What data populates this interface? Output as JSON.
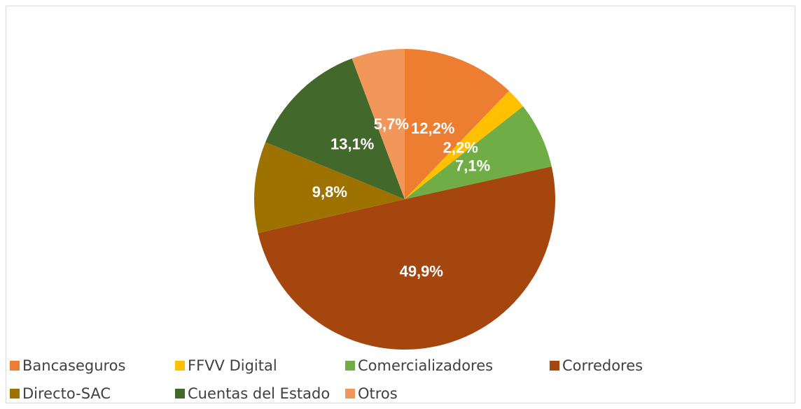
{
  "chart_data": {
    "type": "pie",
    "categories": [
      "Bancaseguros",
      "FFVV Digital",
      "Comercializadores",
      "Corredores",
      "Directo-SAC",
      "Cuentas del Estado",
      "Otros"
    ],
    "values": [
      12.2,
      2.2,
      7.1,
      49.9,
      9.8,
      13.1,
      5.7
    ],
    "value_labels": [
      "12,2%",
      "2,2%",
      "7,1%",
      "49,9%",
      "9,8%",
      "13,1%",
      "5,7%"
    ],
    "colors": [
      "#ED7D31",
      "#FFC000",
      "#70AD47",
      "#A5460F",
      "#9E7200",
      "#43682B",
      "#F1975A"
    ],
    "legend": "bottom"
  }
}
